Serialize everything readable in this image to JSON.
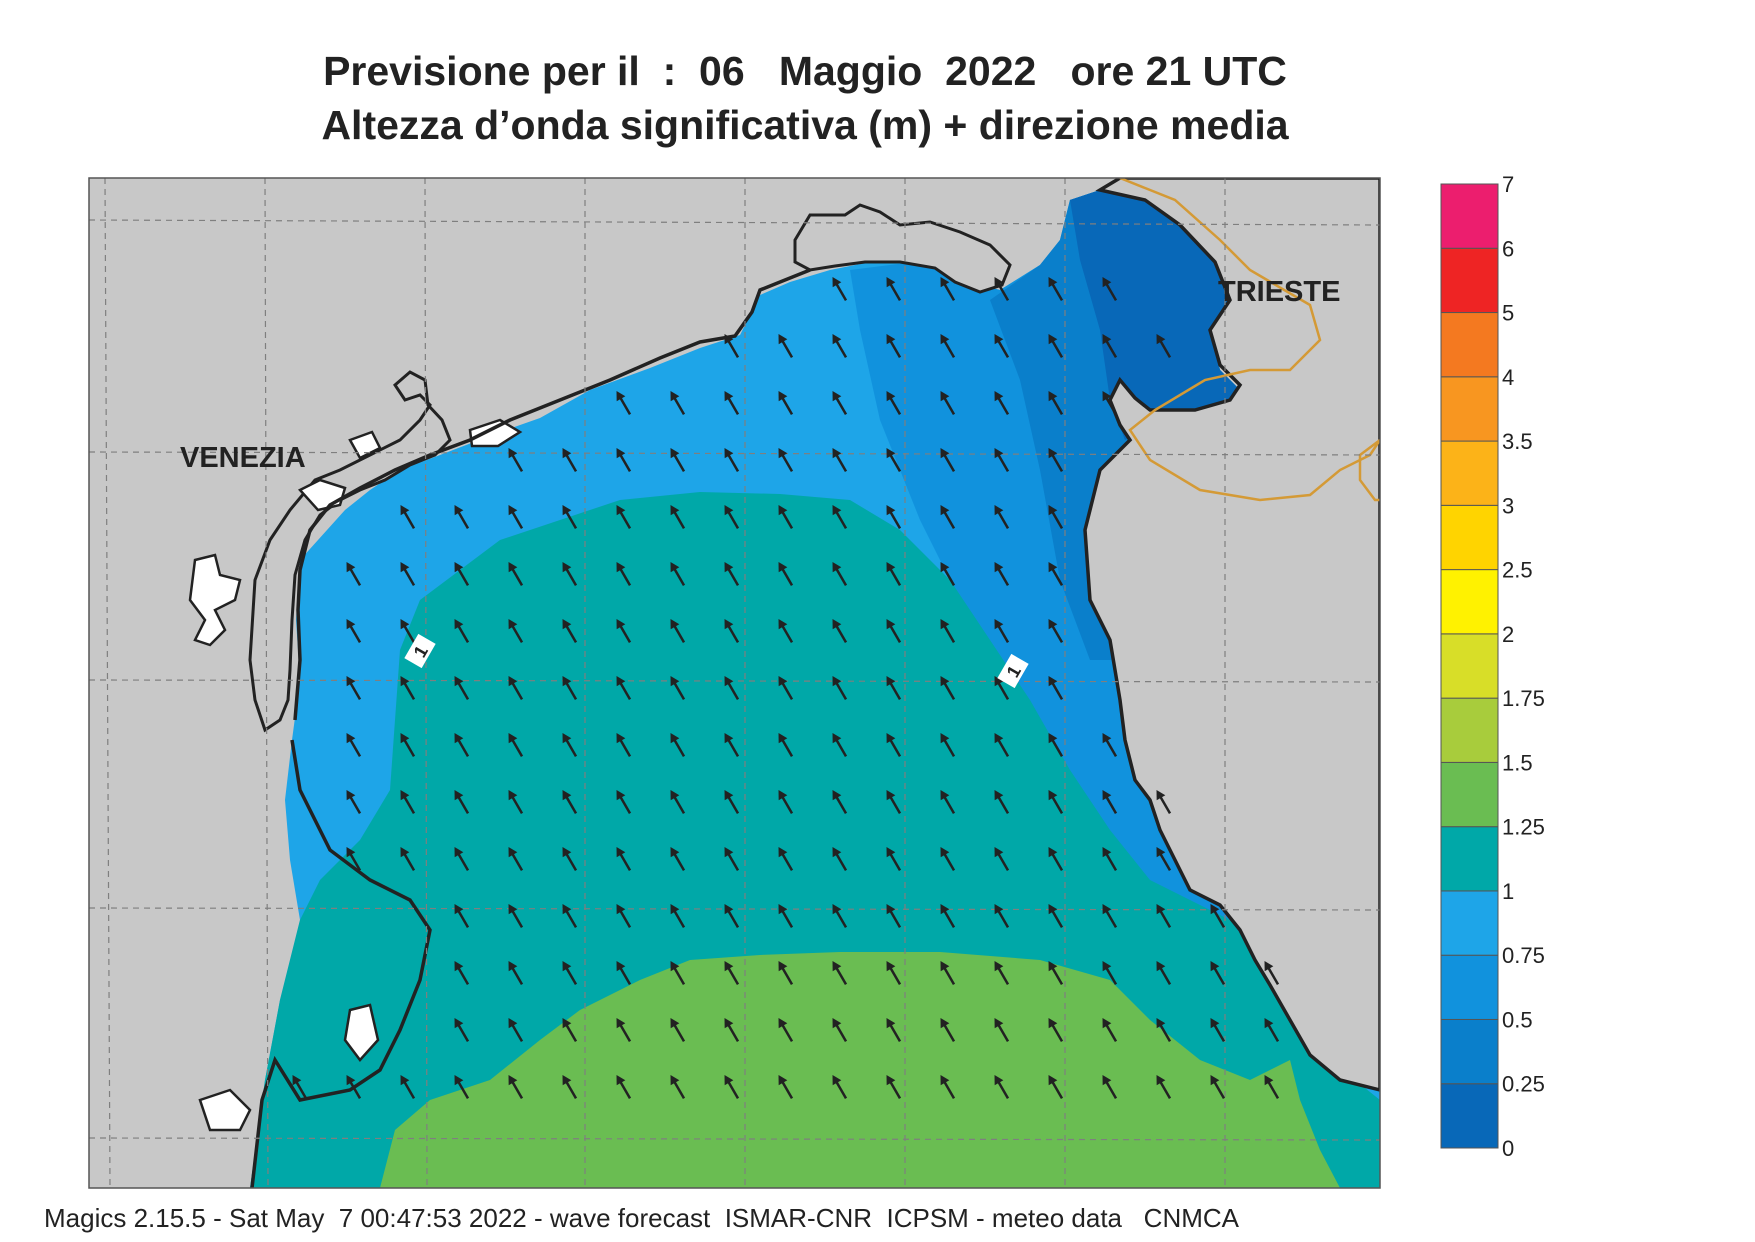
{
  "title": {
    "line1": "Previsione per il  :  06   Maggio  2022   ore 21 UTC",
    "line2": "Altezza d’onda significativa (m) + direzione media"
  },
  "cities": {
    "venezia": "VENEZIA",
    "trieste": "TRIESTE"
  },
  "contour_labels": [
    "1",
    "1"
  ],
  "colorbar": {
    "levels": [
      "0",
      "0.25",
      "0.5",
      "0.75",
      "1",
      "1.25",
      "1.5",
      "1.75",
      "2",
      "2.5",
      "3",
      "3.5",
      "4",
      "5",
      "6",
      "7"
    ],
    "colors": [
      "#0868b8",
      "#0a7fcb",
      "#1192dd",
      "#1ea5e8",
      "#00a8a8",
      "#6abd52",
      "#a8cc3c",
      "#d8de28",
      "#fff200",
      "#ffd400",
      "#fcb318",
      "#f89620",
      "#f47920",
      "#ee2424",
      "#ec1e6e"
    ]
  },
  "wave_height_colors": {
    "land": "#c8c8c8",
    "0-0.25": "#0868b8",
    "0.25-0.5": "#0a7fcb",
    "0.5-0.75": "#1192dd",
    "0.75-1": "#1ea5e8",
    "1-1.25": "#00a8a8",
    "1.25-1.5": "#6abd52"
  },
  "arrow_direction": "north-west (mean wave direction)",
  "footer": "Magics 2.15.5 - Sat May  7 00:47:53 2022 - wave forecast  ISMAR-CNR  ICPSM - meteo data   CNMCA"
}
